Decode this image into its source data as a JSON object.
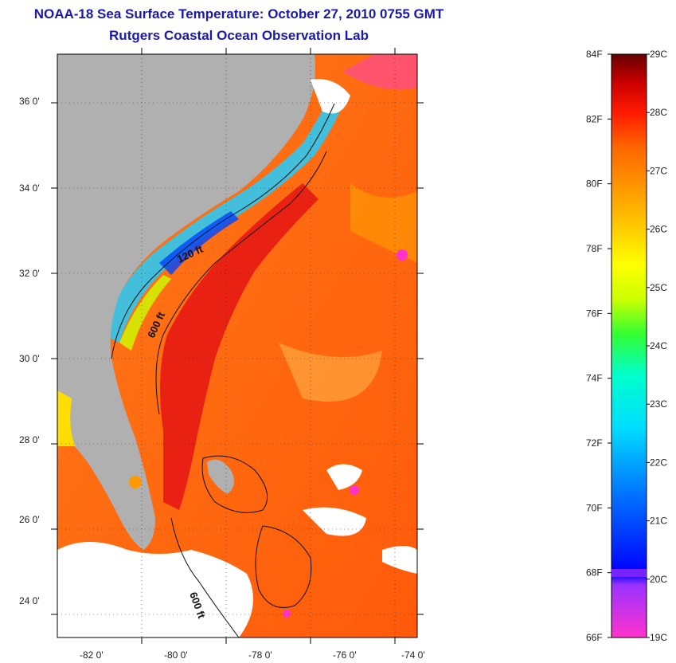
{
  "title": "NOAA-18 Sea Surface Temperature:  October 27, 2010 0755 GMT",
  "subtitle": "Rutgers Coastal Ocean Observation Lab",
  "lat_ticks": [
    "24 0'",
    "26 0'",
    "28 0'",
    "30 0'",
    "32 0'",
    "34 0'",
    "36 0'"
  ],
  "lon_ticks": [
    "-82 0'",
    "-80 0'",
    "-78 0'",
    "-76 0'",
    "-74 0'"
  ],
  "contour_labels": [
    "120 ft",
    "600 ft",
    "600 ft"
  ],
  "colorbar": {
    "fahrenheit": [
      "84F",
      "82F",
      "80F",
      "78F",
      "76F",
      "74F",
      "72F",
      "70F",
      "68F",
      "66F"
    ],
    "celsius": [
      "29C",
      "28C",
      "27C",
      "26C",
      "25C",
      "24C",
      "23C",
      "22C",
      "21C",
      "20C",
      "19C"
    ],
    "colors": [
      "#ff33cc",
      "#9933ff",
      "#0000ff",
      "#0077ff",
      "#00ccff",
      "#00ffcc",
      "#33ff33",
      "#ccff00",
      "#ffff00",
      "#ffcc00",
      "#ff9900",
      "#ff6600",
      "#ff2200",
      "#dd0000",
      "#990000",
      "#660000"
    ]
  },
  "colors": {
    "land": "#b0b0b0",
    "ocean_warm": "#ff6a10",
    "gulf_stream": "#e51414",
    "cloud": "#ffffff",
    "title": "#1a1aa6"
  }
}
